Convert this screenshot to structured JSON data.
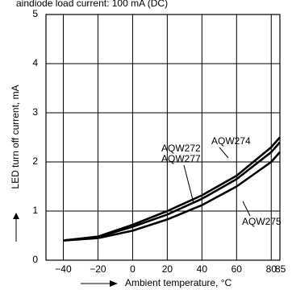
{
  "chart_data": {
    "type": "line",
    "title": "aindiode load current: 100 mA (DC)",
    "x_label": "Ambient temperature, °C",
    "y_label": "LED turn off current, mA",
    "x": [
      -40,
      -20,
      0,
      20,
      40,
      60,
      80,
      85
    ],
    "series": [
      {
        "color": "#000000",
        "values": [
          0.4,
          0.48,
          0.72,
          1.0,
          1.32,
          1.72,
          2.3,
          2.5
        ]
      },
      {
        "color": "#000000",
        "values": [
          0.4,
          0.47,
          0.68,
          0.93,
          1.25,
          1.65,
          2.2,
          2.4
        ]
      },
      {
        "color": "#000000",
        "values": [
          0.4,
          0.45,
          0.6,
          0.83,
          1.12,
          1.5,
          2.0,
          2.2
        ]
      }
    ],
    "annotations": [
      "AQW272",
      "AQW277",
      "AQW274",
      "AQW275"
    ],
    "xlim": [
      -50,
      85
    ],
    "ylim": [
      0,
      5
    ],
    "xticks": [
      {
        "value": -40,
        "label": "−40"
      },
      {
        "value": -20,
        "label": "−20"
      },
      0,
      20,
      40,
      60,
      80,
      85
    ],
    "yticks": [
      0,
      1,
      2,
      3,
      4,
      5
    ],
    "grid": true
  }
}
